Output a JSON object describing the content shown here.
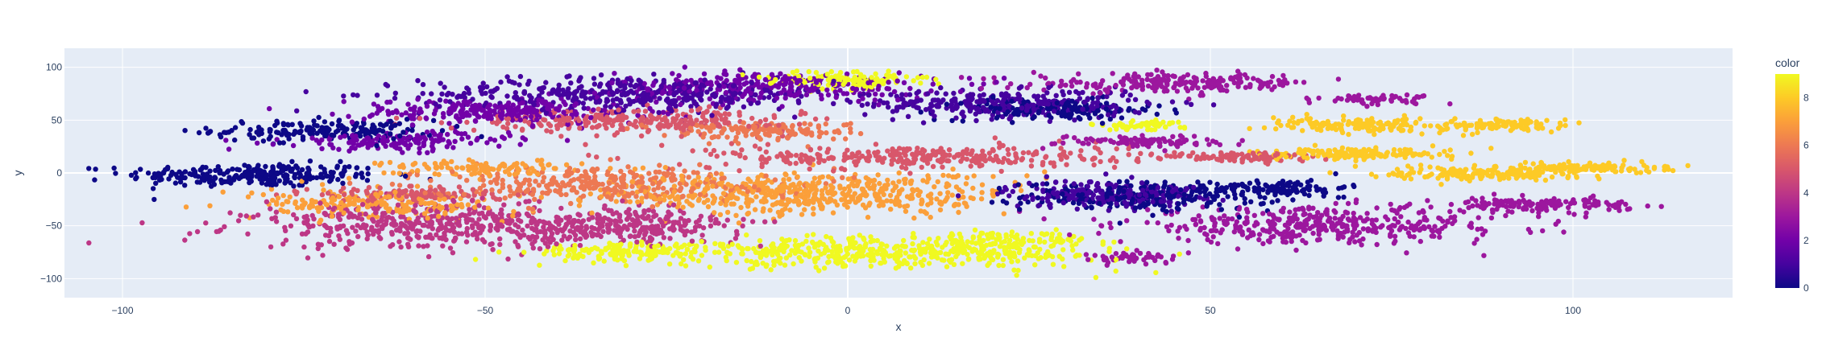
{
  "chart_data": {
    "type": "scatter",
    "title": "",
    "xlabel": "x",
    "ylabel": "y",
    "xlim": [
      -108,
      122
    ],
    "ylim": [
      -118,
      118
    ],
    "x_ticks": [
      -100,
      -50,
      0,
      50,
      100
    ],
    "x_tick_labels": [
      "−100",
      "−50",
      "0",
      "50",
      "100"
    ],
    "y_ticks": [
      -100,
      -50,
      0,
      50,
      100
    ],
    "y_tick_labels": [
      "−100",
      "−50",
      "0",
      "50",
      "100"
    ],
    "grid": true,
    "plot_bgcolor": "#e5ecf6",
    "colorbar": {
      "title": "color",
      "range": [
        0,
        9
      ],
      "ticks": [
        0,
        2,
        4,
        6,
        8
      ],
      "tick_labels": [
        "0",
        "2",
        "4",
        "6",
        "8"
      ],
      "colorscale": [
        "#0d0887",
        "#46039f",
        "#7201a8",
        "#9c179e",
        "#bd3786",
        "#d8576b",
        "#ed7953",
        "#fb9f3a",
        "#fdca26",
        "#f0f921"
      ]
    },
    "clusters": [
      {
        "color": 0,
        "cx": -82,
        "cy": -2,
        "rx": 16,
        "ry": 10,
        "n": 260
      },
      {
        "color": 0,
        "cx": -72,
        "cy": 40,
        "rx": 14,
        "ry": 9,
        "n": 180
      },
      {
        "color": 0,
        "cx": 42,
        "cy": -22,
        "rx": 16,
        "ry": 12,
        "n": 260
      },
      {
        "color": 0,
        "cx": 28,
        "cy": 60,
        "rx": 14,
        "ry": 9,
        "n": 160
      },
      {
        "color": 0,
        "cx": 60,
        "cy": -14,
        "rx": 8,
        "ry": 7,
        "n": 90
      },
      {
        "color": 1,
        "cx": -30,
        "cy": 75,
        "rx": 26,
        "ry": 14,
        "n": 420
      },
      {
        "color": 1,
        "cx": 22,
        "cy": 65,
        "rx": 18,
        "ry": 12,
        "n": 300
      },
      {
        "color": 1,
        "cx": 35,
        "cy": -20,
        "rx": 12,
        "ry": 12,
        "n": 200
      },
      {
        "color": 2,
        "cx": -10,
        "cy": 82,
        "rx": 20,
        "ry": 12,
        "n": 300
      },
      {
        "color": 2,
        "cx": -48,
        "cy": 58,
        "rx": 18,
        "ry": 11,
        "n": 260
      },
      {
        "color": 2,
        "cx": -62,
        "cy": 30,
        "rx": 14,
        "ry": 8,
        "n": 160
      },
      {
        "color": 3,
        "cx": 65,
        "cy": -50,
        "rx": 25,
        "ry": 15,
        "n": 400
      },
      {
        "color": 3,
        "cx": 45,
        "cy": 85,
        "rx": 18,
        "ry": 8,
        "n": 220
      },
      {
        "color": 3,
        "cx": 95,
        "cy": -30,
        "rx": 12,
        "ry": 6,
        "n": 140
      },
      {
        "color": 3,
        "cx": 73,
        "cy": 70,
        "rx": 7,
        "ry": 4,
        "n": 60
      },
      {
        "color": 3,
        "cx": 40,
        "cy": 30,
        "rx": 10,
        "ry": 5,
        "n": 100
      },
      {
        "color": 3,
        "cx": 40,
        "cy": -80,
        "rx": 6,
        "ry": 5,
        "n": 50
      },
      {
        "color": 4,
        "cx": -55,
        "cy": -50,
        "rx": 25,
        "ry": 20,
        "n": 520
      },
      {
        "color": 4,
        "cx": -30,
        "cy": -50,
        "rx": 14,
        "ry": 14,
        "n": 220
      },
      {
        "color": 5,
        "cx": -30,
        "cy": 50,
        "rx": 20,
        "ry": 10,
        "n": 280
      },
      {
        "color": 5,
        "cx": 10,
        "cy": 15,
        "rx": 26,
        "ry": 10,
        "n": 320
      },
      {
        "color": 5,
        "cx": 55,
        "cy": 15,
        "rx": 10,
        "ry": 5,
        "n": 110
      },
      {
        "color": 5,
        "cx": -60,
        "cy": -20,
        "rx": 12,
        "ry": 6,
        "n": 120
      },
      {
        "color": 6,
        "cx": -35,
        "cy": -10,
        "rx": 22,
        "ry": 14,
        "n": 320
      },
      {
        "color": 6,
        "cx": -12,
        "cy": 40,
        "rx": 12,
        "ry": 8,
        "n": 140
      },
      {
        "color": 7,
        "cx": -5,
        "cy": -20,
        "rx": 25,
        "ry": 18,
        "n": 520
      },
      {
        "color": 7,
        "cx": -65,
        "cy": -30,
        "rx": 16,
        "ry": 12,
        "n": 220
      },
      {
        "color": 7,
        "cx": -50,
        "cy": 5,
        "rx": 12,
        "ry": 7,
        "n": 110
      },
      {
        "color": 8,
        "cx": 70,
        "cy": 45,
        "rx": 10,
        "ry": 6,
        "n": 150
      },
      {
        "color": 8,
        "cx": 70,
        "cy": 18,
        "rx": 12,
        "ry": 5,
        "n": 150
      },
      {
        "color": 8,
        "cx": 90,
        "cy": 45,
        "rx": 8,
        "ry": 5,
        "n": 110
      },
      {
        "color": 8,
        "cx": 88,
        "cy": 0,
        "rx": 12,
        "ry": 6,
        "n": 170
      },
      {
        "color": 8,
        "cx": 102,
        "cy": 5,
        "rx": 10,
        "ry": 4,
        "n": 110
      },
      {
        "color": 9,
        "cx": 5,
        "cy": -75,
        "rx": 28,
        "ry": 14,
        "n": 460
      },
      {
        "color": 9,
        "cx": -30,
        "cy": -75,
        "rx": 12,
        "ry": 8,
        "n": 140
      },
      {
        "color": 9,
        "cx": 0,
        "cy": 88,
        "rx": 10,
        "ry": 8,
        "n": 120
      },
      {
        "color": 9,
        "cx": 22,
        "cy": -65,
        "rx": 10,
        "ry": 10,
        "n": 110
      },
      {
        "color": 9,
        "cx": 40,
        "cy": 45,
        "rx": 6,
        "ry": 4,
        "n": 50
      }
    ]
  }
}
